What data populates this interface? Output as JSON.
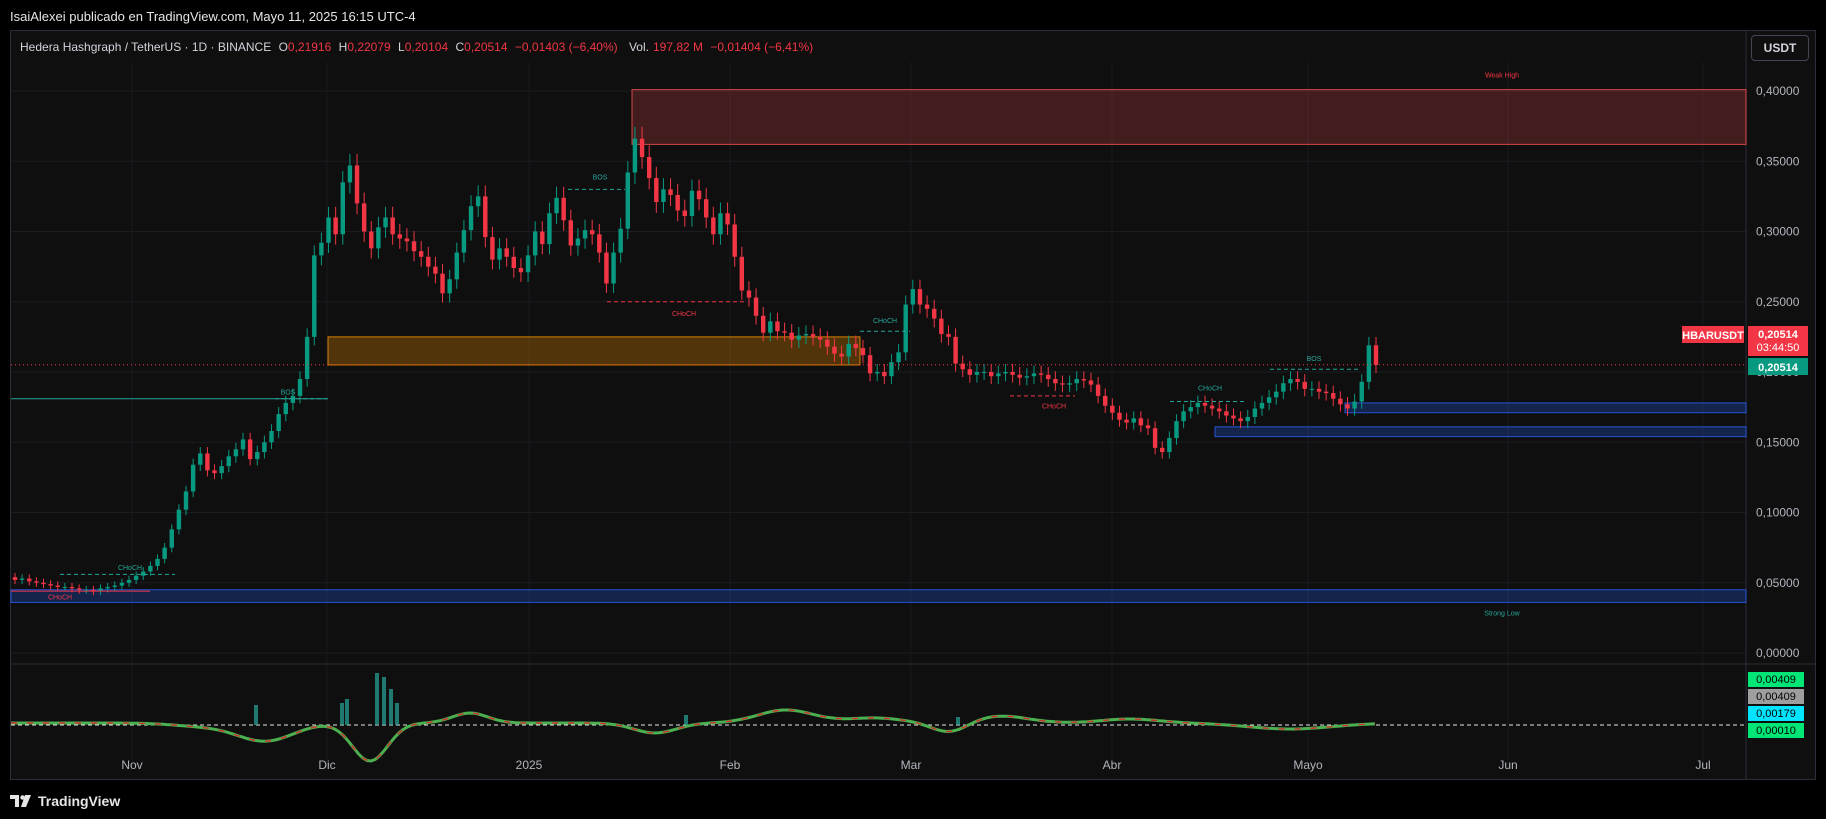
{
  "header": {
    "published": "IsaiAlexei publicado en TradingView.com, Mayo 11, 2025 16:15 UTC-4"
  },
  "legend": {
    "symbol": "Hedera Hashgraph / TetherUS · 1D · BINANCE",
    "o_label": "O",
    "o_val": "0,21916",
    "h_label": "H",
    "h_val": "0,22079",
    "l_label": "L",
    "l_val": "0,20104",
    "c_label": "C",
    "c_val": "0,20514",
    "change": "−0,01403 (−6,40%)",
    "vol_label": "Vol.",
    "vol_val": "197,82 M",
    "vol_change": "−0,01404 (−6,41%)"
  },
  "currency_button": "USDT",
  "footer": {
    "brand": "TradingView"
  },
  "colors": {
    "up": "#089981",
    "down": "#f23645",
    "bg": "#0f0f0f",
    "grid": "#1c1e26"
  },
  "chart_data": {
    "type": "candlestick",
    "symbol": "HBARUSDT",
    "ylim": [
      0,
      0.4
    ],
    "y_ticks": [
      "0,40000",
      "0,35000",
      "0,30000",
      "0,25000",
      "0,20000",
      "0,15000",
      "0,10000",
      "0,05000",
      "0,00000"
    ],
    "x_labels": [
      "Nov",
      "Dic",
      "2025",
      "Feb",
      "Mar",
      "Abr",
      "Mayo",
      "Jun",
      "Jul"
    ],
    "last_price": "0,20514",
    "countdown": "03:44:50",
    "price_tag_label": "HBARUSDT",
    "current_tag": "0,20514",
    "zones": [
      {
        "name": "weak-high-zone",
        "label": "Weak High",
        "from": 0.362,
        "to": 0.401,
        "color": "#ff5252"
      },
      {
        "name": "order-block",
        "from": 0.205,
        "to": 0.225,
        "color": "#ff9800"
      },
      {
        "name": "demand-zone-upper",
        "from": 0.171,
        "to": 0.178,
        "color": "#2962ff"
      },
      {
        "name": "demand-zone-lower",
        "from": 0.154,
        "to": 0.161,
        "color": "#2962ff"
      },
      {
        "name": "strong-low-zone",
        "label": "Strong Low",
        "from": 0.036,
        "to": 0.045,
        "color": "#2962ff"
      }
    ],
    "structure_labels": [
      {
        "text": "BOS",
        "color": "#26a69a"
      },
      {
        "text": "CHoCH",
        "color": "#26a69a"
      },
      {
        "text": "CHoCH",
        "color": "#f23645"
      },
      {
        "text": "BOS",
        "color": "#26a69a"
      },
      {
        "text": "CHoCH",
        "color": "#f23645"
      },
      {
        "text": "CHoCH",
        "color": "#26a69a"
      },
      {
        "text": "CHoCH",
        "color": "#f23645"
      },
      {
        "text": "CHoCH",
        "color": "#26a69a"
      },
      {
        "text": "BOS",
        "color": "#26a69a"
      }
    ],
    "closes": [
      0.052,
      0.053,
      0.051,
      0.05,
      0.049,
      0.048,
      0.047,
      0.047,
      0.046,
      0.045,
      0.045,
      0.044,
      0.046,
      0.047,
      0.048,
      0.05,
      0.052,
      0.055,
      0.058,
      0.062,
      0.067,
      0.075,
      0.088,
      0.102,
      0.115,
      0.134,
      0.142,
      0.13,
      0.128,
      0.133,
      0.14,
      0.145,
      0.152,
      0.138,
      0.143,
      0.15,
      0.158,
      0.17,
      0.178,
      0.183,
      0.195,
      0.225,
      0.283,
      0.292,
      0.31,
      0.298,
      0.335,
      0.347,
      0.32,
      0.3,
      0.288,
      0.303,
      0.31,
      0.298,
      0.295,
      0.293,
      0.286,
      0.282,
      0.275,
      0.27,
      0.256,
      0.266,
      0.285,
      0.301,
      0.318,
      0.325,
      0.296,
      0.28,
      0.288,
      0.282,
      0.274,
      0.271,
      0.283,
      0.3,
      0.291,
      0.313,
      0.324,
      0.308,
      0.29,
      0.295,
      0.301,
      0.298,
      0.285,
      0.263,
      0.285,
      0.302,
      0.342,
      0.366,
      0.353,
      0.338,
      0.321,
      0.33,
      0.326,
      0.315,
      0.311,
      0.329,
      0.323,
      0.31,
      0.298,
      0.313,
      0.305,
      0.282,
      0.258,
      0.253,
      0.24,
      0.228,
      0.236,
      0.229,
      0.228,
      0.223,
      0.226,
      0.227,
      0.225,
      0.223,
      0.218,
      0.213,
      0.211,
      0.22,
      0.217,
      0.212,
      0.199,
      0.2,
      0.197,
      0.207,
      0.214,
      0.248,
      0.259,
      0.248,
      0.245,
      0.238,
      0.227,
      0.225,
      0.206,
      0.202,
      0.198,
      0.2,
      0.2,
      0.197,
      0.199,
      0.2,
      0.198,
      0.196,
      0.197,
      0.199,
      0.198,
      0.195,
      0.192,
      0.191,
      0.192,
      0.195,
      0.194,
      0.191,
      0.183,
      0.176,
      0.171,
      0.166,
      0.164,
      0.167,
      0.162,
      0.16,
      0.146,
      0.143,
      0.153,
      0.165,
      0.172,
      0.175,
      0.178,
      0.176,
      0.174,
      0.172,
      0.169,
      0.167,
      0.165,
      0.168,
      0.174,
      0.178,
      0.182,
      0.186,
      0.192,
      0.195,
      0.193,
      0.188,
      0.188,
      0.186,
      0.185,
      0.181,
      0.177,
      0.174,
      0.179,
      0.193,
      0.219,
      0.205
    ],
    "indicator": {
      "values": [
        0.0001,
        0.00409,
        0.00409,
        0.00179
      ],
      "labels": [
        "0,00409",
        "0,00409",
        "0,00179",
        "0,00010"
      ],
      "label_colors": [
        "#00e676",
        "#9e9e9e",
        "#00e5ff",
        "#00e676"
      ],
      "zero_line": "0,00010"
    }
  }
}
